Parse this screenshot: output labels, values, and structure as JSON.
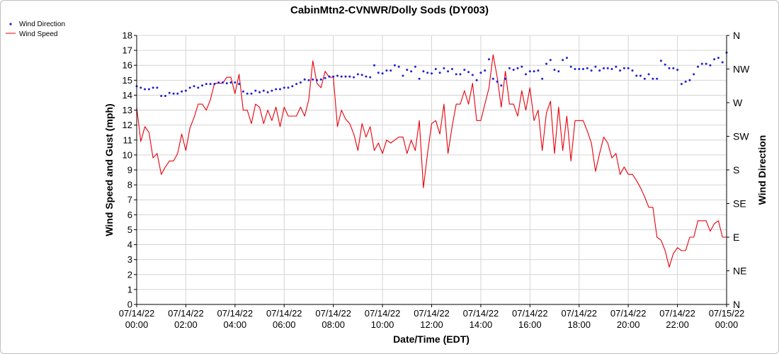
{
  "chart_data": {
    "type": "line",
    "title": "CabinMtn2-CVNWR/Dolly Sods (DY003)",
    "xlabel": "Date/Time (EDT)",
    "ylabel": "Wind Speed and Gust (mph)",
    "y2label": "Wind Direction",
    "xlim": [
      "07/14/22 00:00",
      "07/15/22 00:00"
    ],
    "ylim": [
      0,
      18
    ],
    "y_ticks": [
      "0",
      "1",
      "2",
      "3",
      "4",
      "5",
      "6",
      "7",
      "8",
      "9",
      "10",
      "11",
      "12",
      "13",
      "14",
      "15",
      "16",
      "17",
      "18"
    ],
    "x_ticks": [
      {
        "date": "07/14/22",
        "time": "00:00"
      },
      {
        "date": "07/14/22",
        "time": "02:00"
      },
      {
        "date": "07/14/22",
        "time": "04:00"
      },
      {
        "date": "07/14/22",
        "time": "06:00"
      },
      {
        "date": "07/14/22",
        "time": "08:00"
      },
      {
        "date": "07/14/22",
        "time": "10:00"
      },
      {
        "date": "07/14/22",
        "time": "12:00"
      },
      {
        "date": "07/14/22",
        "time": "14:00"
      },
      {
        "date": "07/14/22",
        "time": "16:00"
      },
      {
        "date": "07/14/22",
        "time": "18:00"
      },
      {
        "date": "07/14/22",
        "time": "20:00"
      },
      {
        "date": "07/14/22",
        "time": "22:00"
      },
      {
        "date": "07/15/22",
        "time": "00:00"
      }
    ],
    "y2_ticks": [
      "N",
      "NE",
      "E",
      "SE",
      "S",
      "SW",
      "W",
      "NW",
      "N"
    ],
    "y2_scale": "compass, N at bottom through NE, E, SE, S, SW, W, NW to N at top",
    "grid": true,
    "legend_position": "top-left",
    "series": [
      {
        "name": "Wind Speed",
        "axis": "left",
        "style": "line",
        "color": "#e8000b",
        "hours_step": 0.1667,
        "values": [
          13.2,
          10.9,
          11.9,
          11.5,
          9.8,
          10.1,
          8.7,
          9.2,
          9.6,
          9.6,
          10.1,
          11.4,
          10.3,
          11.8,
          12.5,
          13.4,
          13.4,
          13.0,
          13.7,
          14.8,
          14.8,
          14.8,
          15.2,
          15.2,
          14.1,
          15.4,
          13.0,
          13.0,
          12.1,
          13.4,
          13.2,
          12.1,
          13.0,
          12.3,
          13.2,
          11.9,
          13.2,
          12.6,
          12.6,
          12.6,
          13.2,
          12.6,
          13.7,
          16.3,
          14.8,
          14.5,
          15.6,
          15.2,
          15.2,
          11.9,
          13.0,
          12.4,
          12.1,
          11.4,
          10.3,
          12.1,
          11.2,
          11.9,
          10.3,
          10.8,
          10.1,
          11.0,
          10.8,
          11.0,
          11.2,
          11.2,
          10.1,
          11.0,
          10.3,
          12.3,
          7.8,
          10.1,
          12.1,
          12.3,
          11.4,
          13.4,
          10.1,
          11.9,
          13.4,
          13.4,
          14.3,
          13.4,
          14.8,
          12.3,
          12.3,
          13.4,
          14.5,
          16.7,
          15.2,
          13.2,
          15.6,
          13.4,
          13.4,
          12.6,
          14.3,
          13.0,
          14.5,
          12.3,
          13.0,
          10.3,
          12.8,
          13.6,
          10.1,
          13.2,
          10.3,
          12.6,
          9.6,
          12.3,
          12.3,
          12.3,
          11.6,
          10.8,
          8.9,
          10.1,
          11.2,
          10.8,
          9.8,
          10.1,
          8.7,
          9.2,
          8.7,
          8.7,
          8.3,
          7.8,
          7.2,
          6.5,
          6.5,
          4.5,
          4.3,
          3.6,
          2.5,
          3.4,
          3.8,
          3.6,
          3.6,
          4.5,
          4.5,
          5.6,
          5.6,
          5.6,
          4.9,
          5.4,
          5.6,
          4.5,
          4.5
        ]
      },
      {
        "name": "Wind Direction",
        "axis": "right",
        "style": "points",
        "color": "#1f1fd6",
        "unit": "degrees",
        "hours_step": 0.1667,
        "values": [
          292,
          290,
          288,
          288,
          290,
          290,
          279,
          279,
          283,
          282,
          282,
          285,
          286,
          290,
          292,
          290,
          293,
          295,
          295,
          295,
          297,
          297,
          296,
          297,
          297,
          295,
          285,
          282,
          282,
          286,
          284,
          286,
          284,
          286,
          288,
          288,
          290,
          290,
          292,
          295,
          297,
          301,
          300,
          301,
          300,
          301,
          303,
          305,
          305,
          306,
          305,
          305,
          305,
          304,
          308,
          307,
          305,
          304,
          320,
          310,
          309,
          313,
          313,
          320,
          318,
          306,
          314,
          312,
          318,
          302,
          312,
          310,
          309,
          315,
          310,
          316,
          312,
          315,
          308,
          308,
          314,
          311,
          307,
          300,
          310,
          313,
          328,
          302,
          298,
          293,
          302,
          316,
          314,
          316,
          318,
          308,
          312,
          312,
          313,
          302,
          322,
          327,
          314,
          312,
          327,
          330,
          318,
          315,
          315,
          315,
          316,
          313,
          318,
          313,
          316,
          316,
          315,
          318,
          313,
          316,
          316,
          313,
          306,
          306,
          302,
          308,
          302,
          302,
          326,
          321,
          316,
          316,
          314,
          295,
          298,
          300,
          308,
          318,
          322,
          322,
          320,
          328,
          330,
          324,
          337
        ]
      }
    ]
  }
}
